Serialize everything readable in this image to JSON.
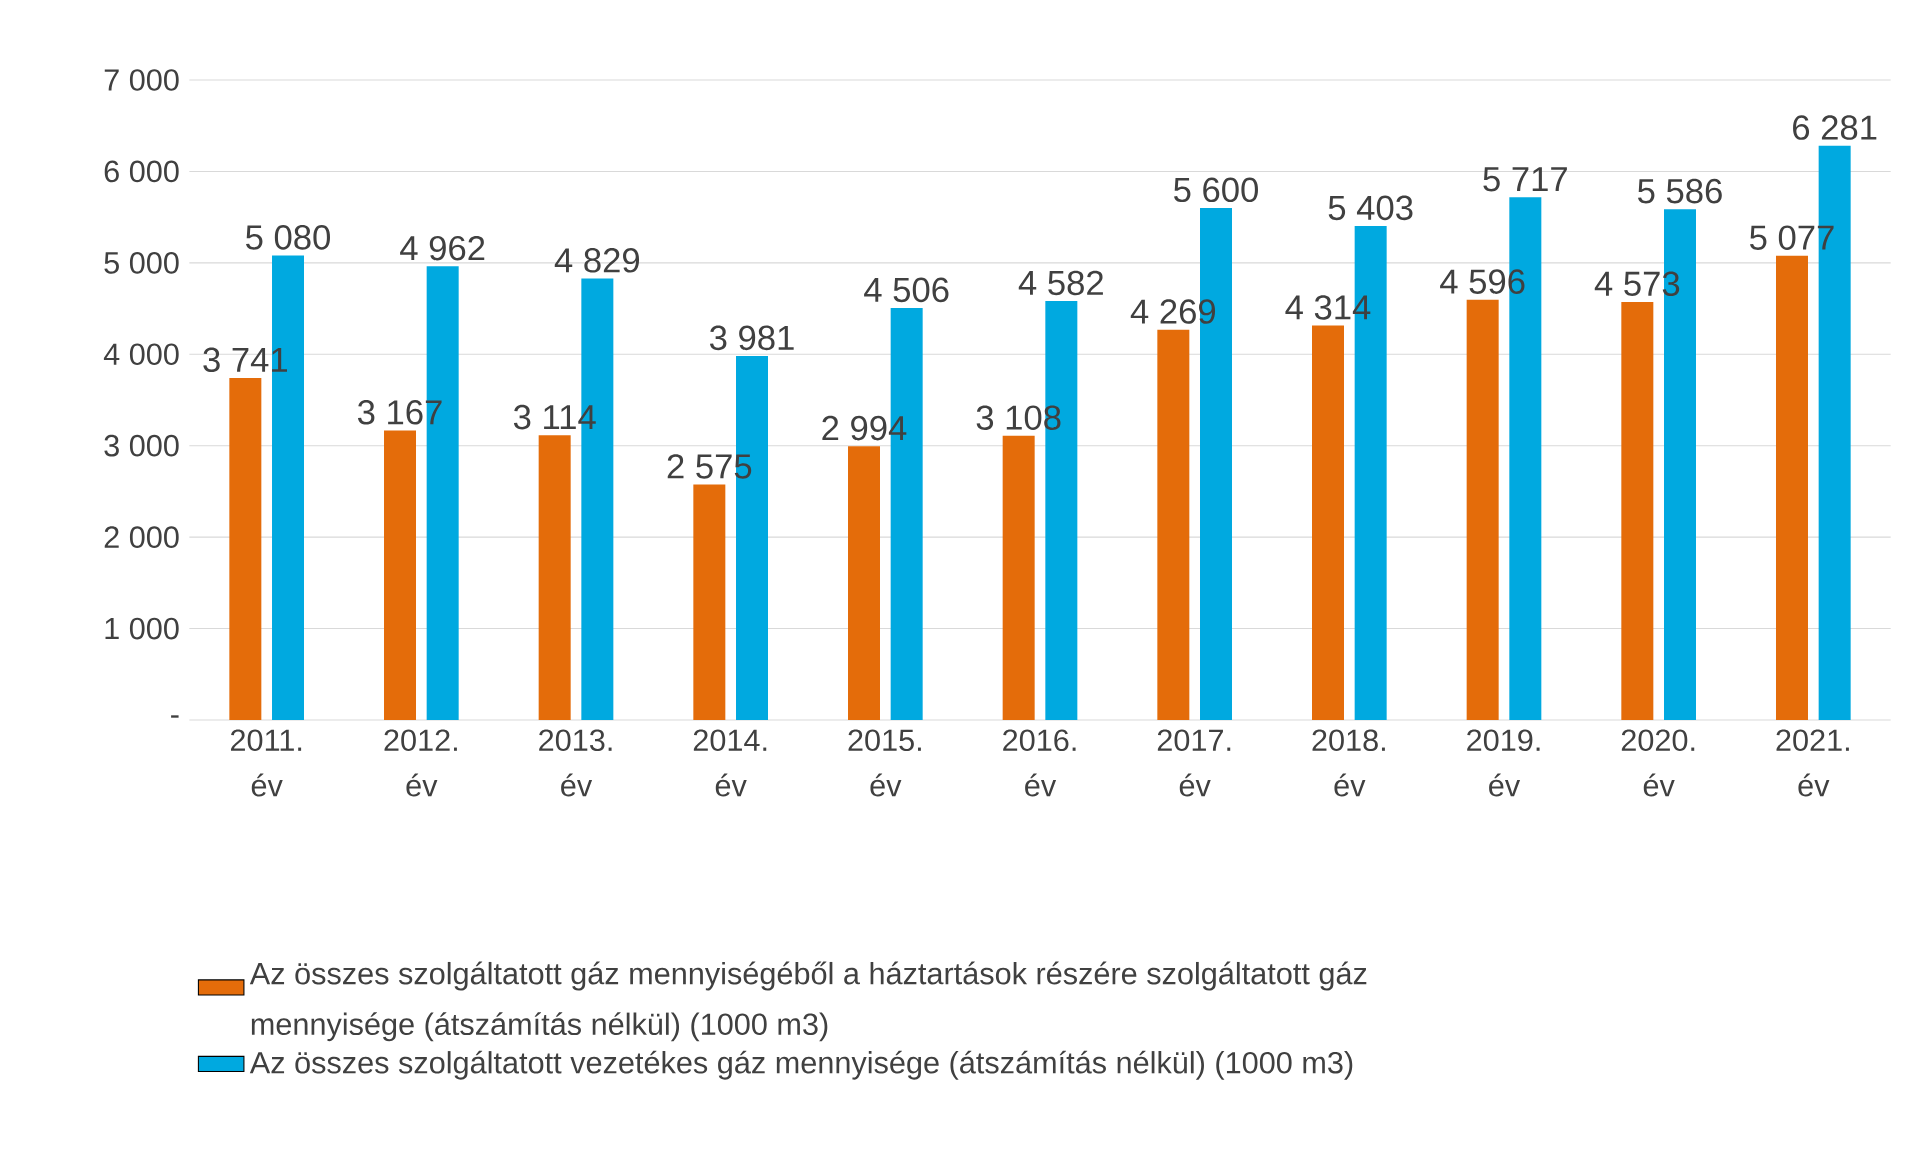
{
  "chart_data": {
    "type": "bar",
    "categories": [
      "2011. év",
      "2012. év",
      "2013. év",
      "2014. év",
      "2015. év",
      "2016. év",
      "2017. év",
      "2018. év",
      "2019. év",
      "2020. év",
      "2021. év"
    ],
    "series": [
      {
        "name": "Az összes szolgáltatott gáz mennyiségéből a háztartások részére szolgáltatott gáz mennyisége (átszámítás nélkül) (1000 m3)",
        "color": "#e46c0a",
        "values": [
          3741,
          3167,
          3114,
          2575,
          2994,
          3108,
          4269,
          4314,
          4596,
          4573,
          5077
        ],
        "value_labels": [
          "3 741",
          "3 167",
          "3 114",
          "2 575",
          "2 994",
          "3 108",
          "4 269",
          "4 314",
          "4 596",
          "4 573",
          "5 077"
        ]
      },
      {
        "name": "Az összes szolgáltatott vezetékes gáz mennyisége (átszámítás nélkül) (1000 m3)",
        "color": "#00a9e0",
        "values": [
          5080,
          4962,
          4829,
          3981,
          4506,
          4582,
          5600,
          5403,
          5717,
          5586,
          6281
        ],
        "value_labels": [
          "5 080",
          "4 962",
          "4 829",
          "3 981",
          "4 506",
          "4 582",
          "5 600",
          "5 403",
          "5 717",
          "5 586",
          "6 281"
        ]
      }
    ],
    "ylim": [
      0,
      7000
    ],
    "yticks": [
      {
        "value": 0,
        "label": "-"
      },
      {
        "value": 1000,
        "label": "1 000"
      },
      {
        "value": 2000,
        "label": "2 000"
      },
      {
        "value": 3000,
        "label": "3 000"
      },
      {
        "value": 4000,
        "label": "4 000"
      },
      {
        "value": 5000,
        "label": "5 000"
      },
      {
        "value": 6000,
        "label": "6 000"
      },
      {
        "value": 7000,
        "label": "7 000"
      }
    ],
    "grid": "y",
    "legend": "bottom"
  }
}
